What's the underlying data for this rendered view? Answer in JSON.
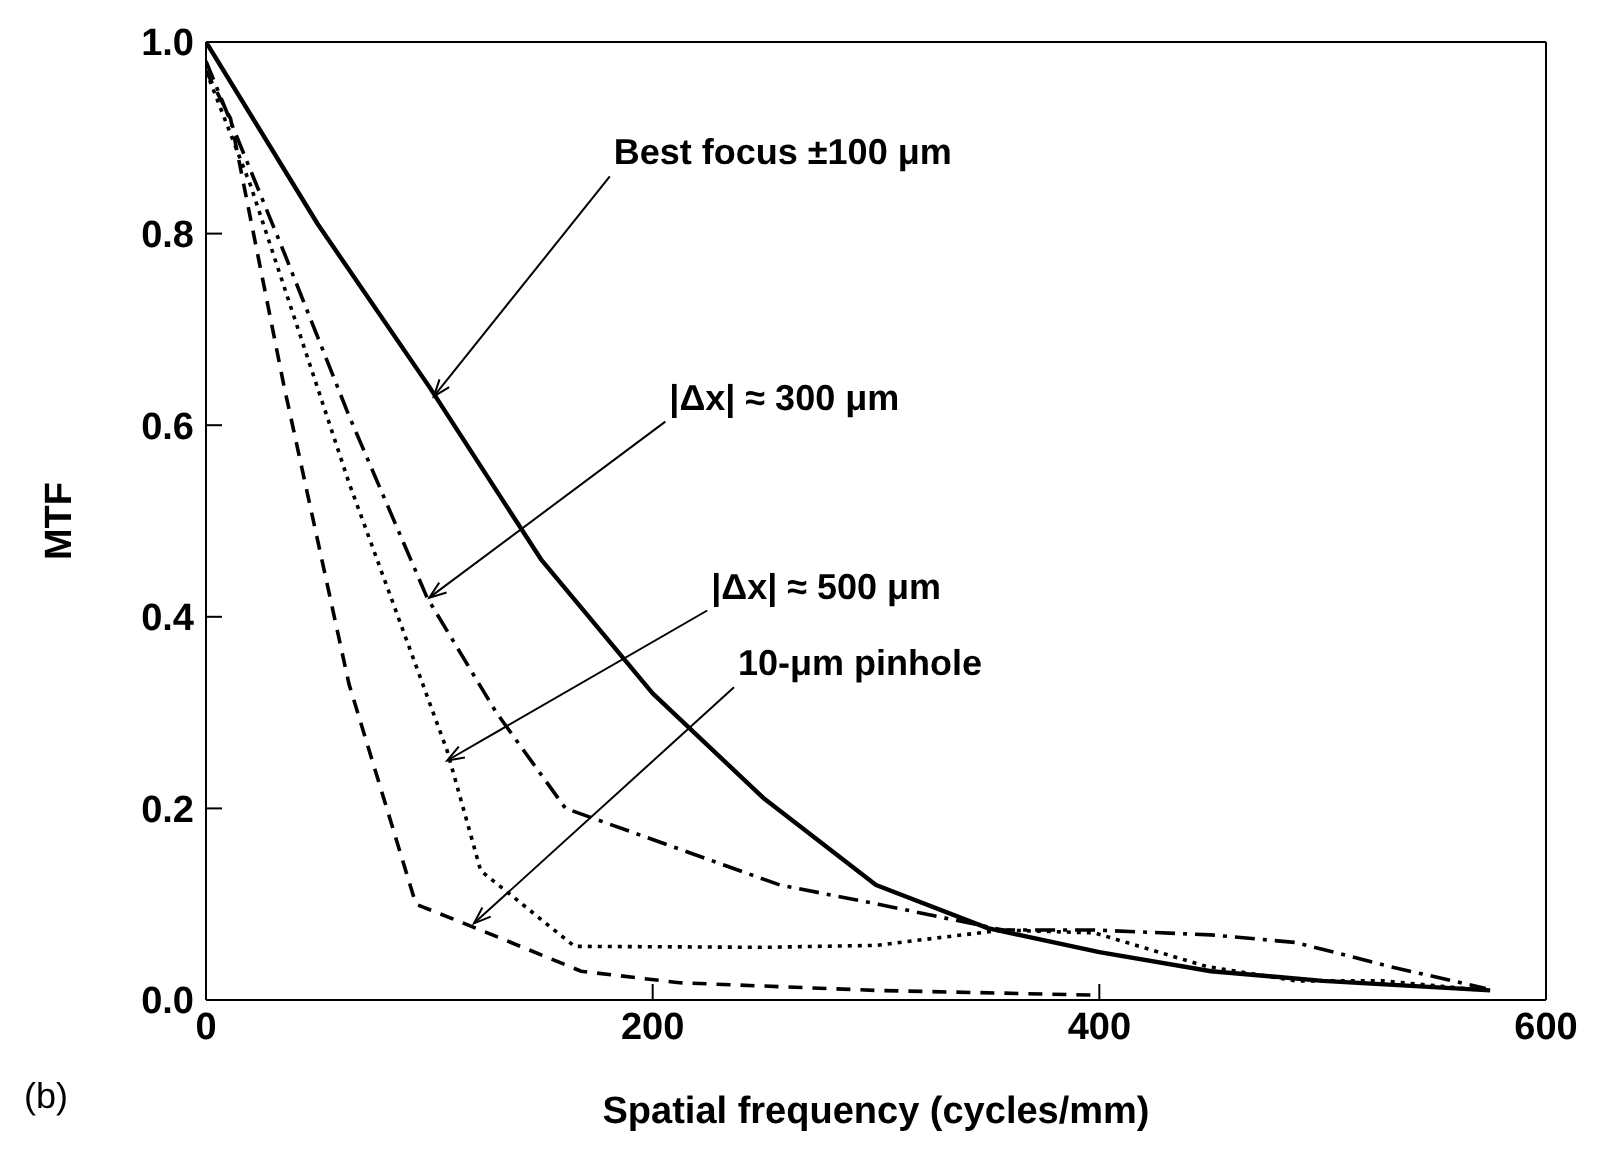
{
  "chart_data": {
    "type": "line",
    "xlabel": "Spatial frequency (cycles/mm)",
    "ylabel": "MTF",
    "xlim": [
      0,
      600
    ],
    "xticks": [
      0,
      200,
      400,
      600
    ],
    "ylim": [
      0,
      1
    ],
    "yticks": [
      {
        "value": 0,
        "label": "0.0"
      },
      {
        "value": 0.2,
        "label": "0.2"
      },
      {
        "value": 0.4,
        "label": "0.4"
      },
      {
        "value": 0.6,
        "label": "0.6"
      },
      {
        "value": 0.8,
        "label": "0.8"
      },
      {
        "value": 1,
        "label": "1.0"
      }
    ],
    "grid": false,
    "marker": "none",
    "series": [
      {
        "color": "#000000",
        "line_style": "solid",
        "x": [
          0,
          50,
          100,
          150,
          200,
          250,
          300,
          350,
          400,
          450,
          500,
          575
        ],
        "values": [
          1.0,
          0.81,
          0.64,
          0.46,
          0.32,
          0.21,
          0.12,
          0.075,
          0.05,
          0.03,
          0.02,
          0.01
        ]
      },
      {
        "color": "#000000",
        "line_style": "dashdot",
        "x": [
          0,
          35,
          64,
          99,
          130,
          161,
          197,
          257,
          301,
          357,
          398,
          450,
          488,
          530,
          573
        ],
        "values": [
          0.98,
          0.78,
          0.61,
          0.42,
          0.3,
          0.2,
          0.17,
          0.12,
          0.1,
          0.073,
          0.073,
          0.068,
          0.06,
          0.035,
          0.012
        ]
      },
      {
        "color": "#000000",
        "line_style": "dotted",
        "x": [
          0,
          20,
          64,
          108,
          123,
          165,
          250,
          300,
          328,
          357,
          398,
          448,
          488,
          527,
          573
        ],
        "values": [
          0.97,
          0.85,
          0.54,
          0.26,
          0.135,
          0.056,
          0.055,
          0.057,
          0.065,
          0.073,
          0.07,
          0.035,
          0.02,
          0.02,
          0.01
        ]
      },
      {
        "color": "#000000",
        "line_style": "dashed",
        "x": [
          0,
          11,
          35,
          64,
          94,
          123,
          168,
          212,
          300,
          400
        ],
        "values": [
          0.97,
          0.92,
          0.64,
          0.33,
          0.1,
          0.073,
          0.03,
          0.018,
          0.01,
          0.005
        ]
      }
    ],
    "annotations": [
      {
        "text": "Best focus ±100 μm",
        "x": 102,
        "y": 0.63
      },
      {
        "text": "|Δx| ≈ 300 μm",
        "x": 100,
        "y": 0.42
      },
      {
        "text": "|Δx| ≈ 500 μm",
        "x": 108,
        "y": 0.25
      },
      {
        "text": "10-μm pinhole",
        "x": 120,
        "y": 0.08
      },
      "(b)"
    ]
  }
}
